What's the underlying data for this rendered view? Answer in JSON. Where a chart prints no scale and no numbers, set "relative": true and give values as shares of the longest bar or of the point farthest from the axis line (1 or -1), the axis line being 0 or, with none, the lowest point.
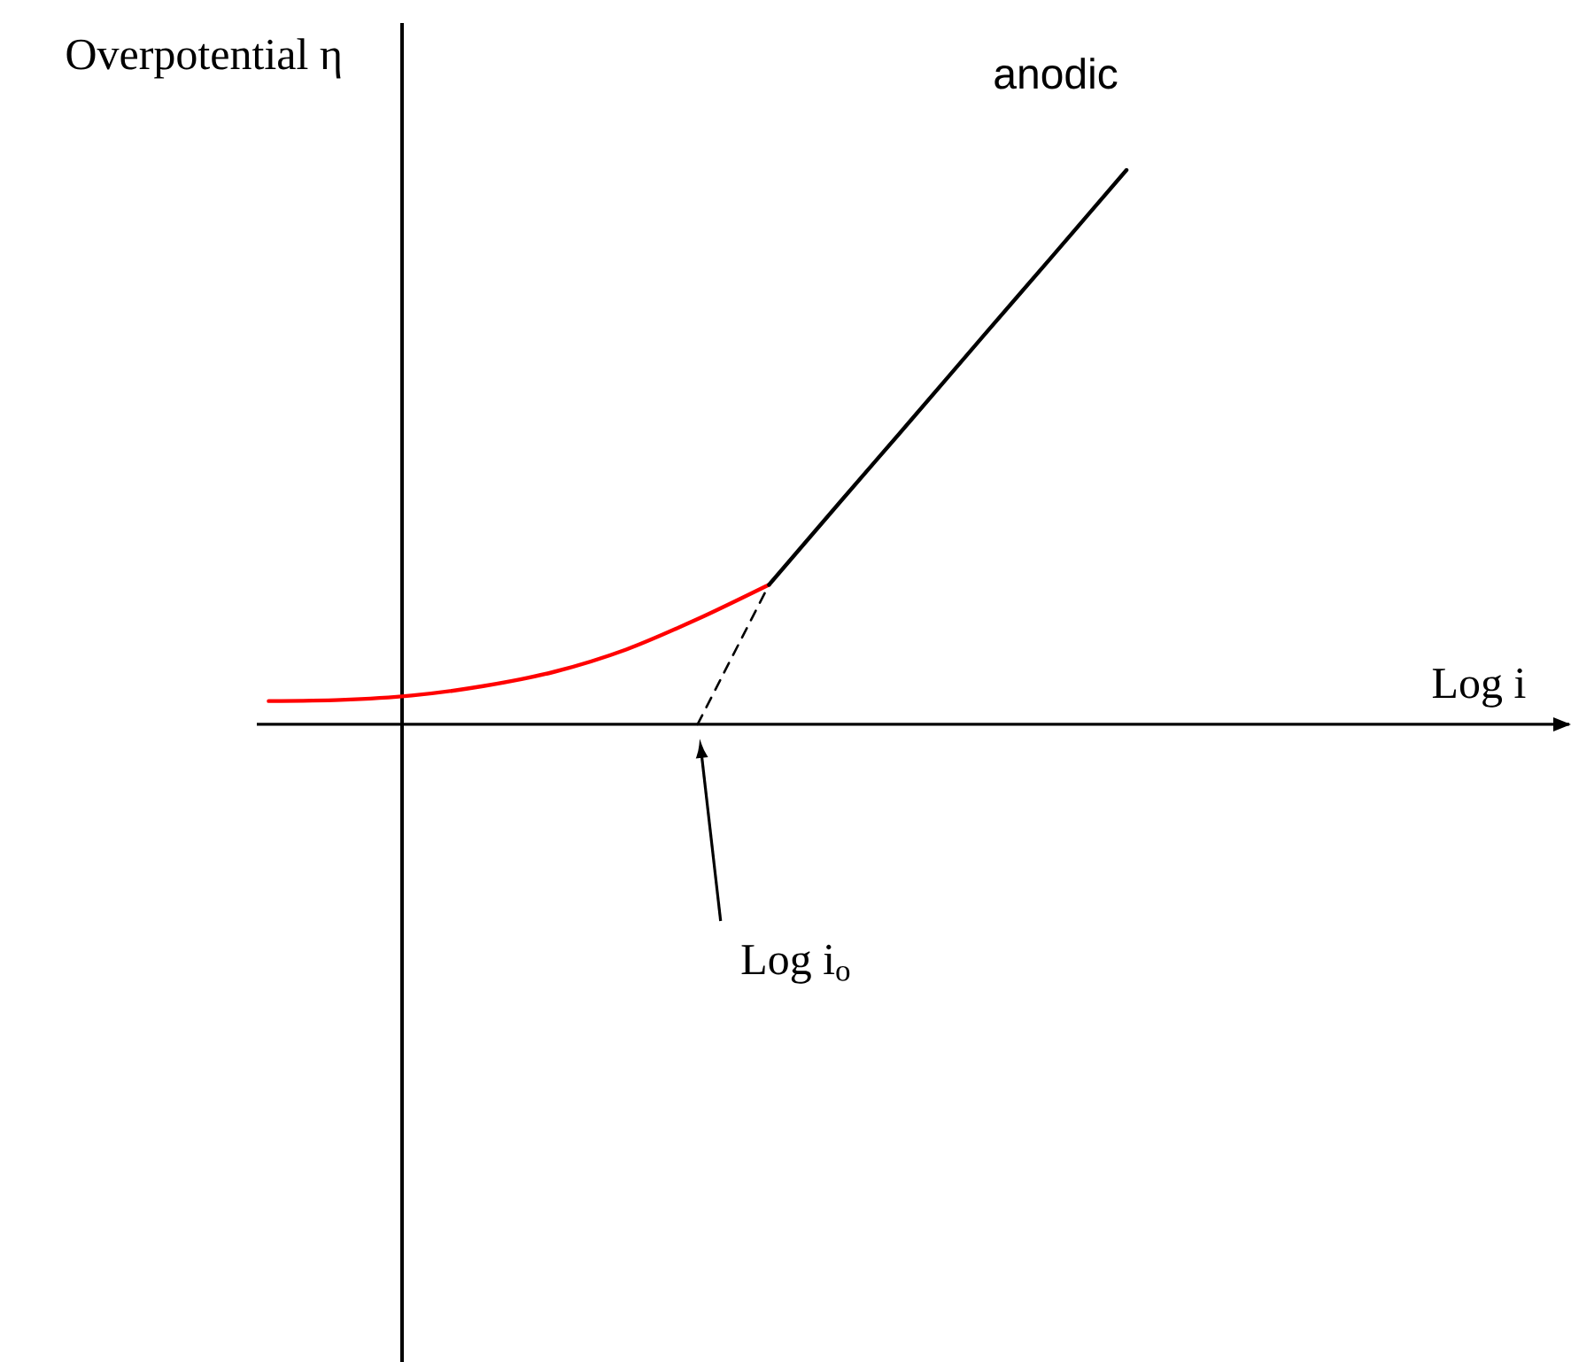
{
  "chart_data": {
    "type": "line",
    "relative": true,
    "ylabel": "Overpotential η",
    "categories": [
      null,
      null,
      null,
      null,
      null,
      null,
      null,
      null,
      null,
      null,
      null,
      null,
      null
    ],
    "series": [
      {
        "color": "#ff0000",
        "values": [
          0.042,
          0.044,
          0.052,
          0.069,
          0.095,
          0.135,
          0.19,
          0.252,
          null,
          null,
          null,
          null,
          null
        ]
      },
      {
        "color": "#000000",
        "line_style": "dashed",
        "values": [
          null,
          null,
          null,
          null,
          null,
          null,
          0,
          0.252,
          null,
          null,
          null,
          null,
          null
        ]
      },
      {
        "name": "anodic",
        "color": "#000000",
        "values": [
          null,
          null,
          null,
          null,
          null,
          null,
          null,
          0.252,
          0.402,
          0.551,
          0.701,
          0.85,
          1
        ]
      }
    ],
    "annotations": [
      "Log i",
      "Log i$_{o}$"
    ]
  }
}
